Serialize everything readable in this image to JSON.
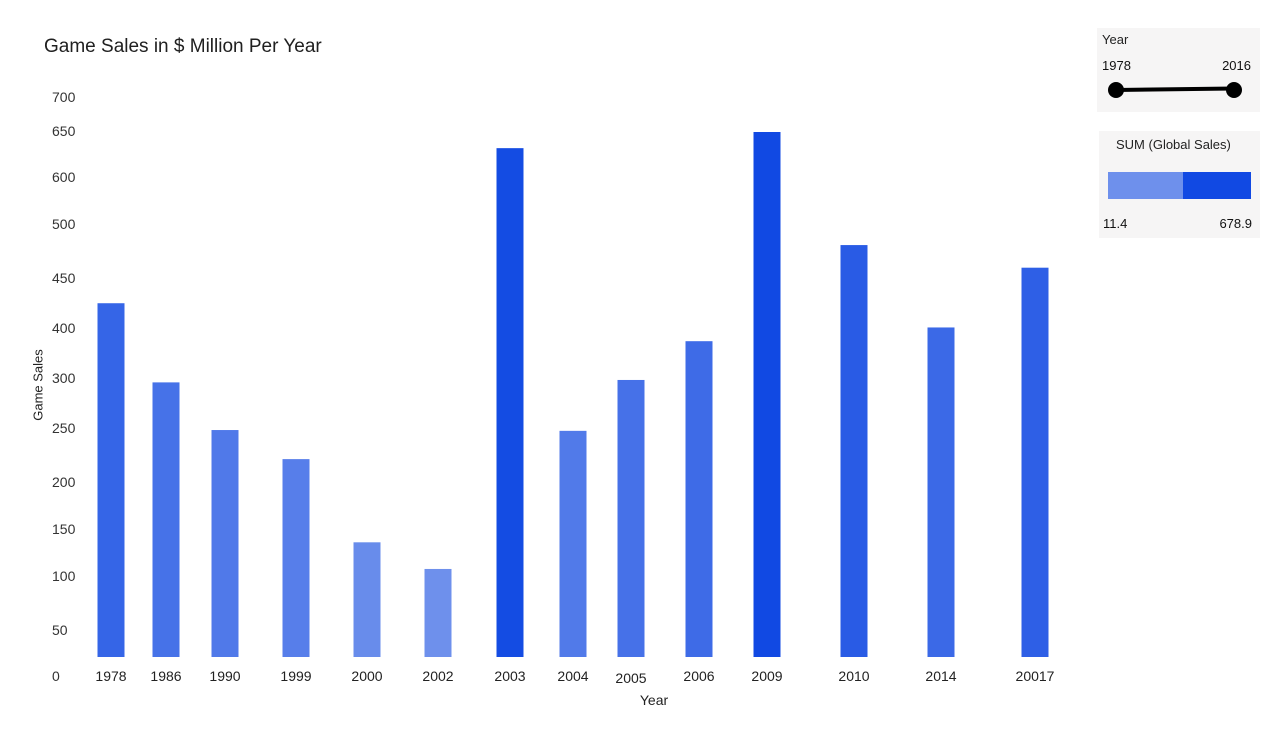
{
  "chart_data": {
    "type": "bar",
    "title": "Game Sales in $ Million Per Year",
    "xlabel": "Year",
    "ylabel": "Game Sales",
    "y_tick_labels": [
      "700",
      "650",
      "600",
      "500",
      "450",
      "400",
      "300",
      "250",
      "200",
      "150",
      "100",
      "50"
    ],
    "y_zero_label": "0",
    "categories": [
      "1978",
      "1986",
      "1990",
      "1999",
      "2000",
      "2002",
      "2003",
      "2004",
      "2005",
      "2006",
      "2009",
      "2010",
      "2014",
      "20017"
    ],
    "values": [
      438,
      340,
      281,
      245,
      142,
      109,
      630,
      280,
      343,
      391,
      650,
      510,
      408,
      482
    ],
    "ylim": [
      0,
      700
    ],
    "grid": false,
    "legend": "right"
  },
  "filter": {
    "title": "Year",
    "min_label": "1978",
    "max_label": "2016"
  },
  "color_legend": {
    "title": "SUM (Global Sales)",
    "min_label": "11.4",
    "max_label": "678.9",
    "color_low": "#6e90ec",
    "color_high": "#1149e3"
  }
}
